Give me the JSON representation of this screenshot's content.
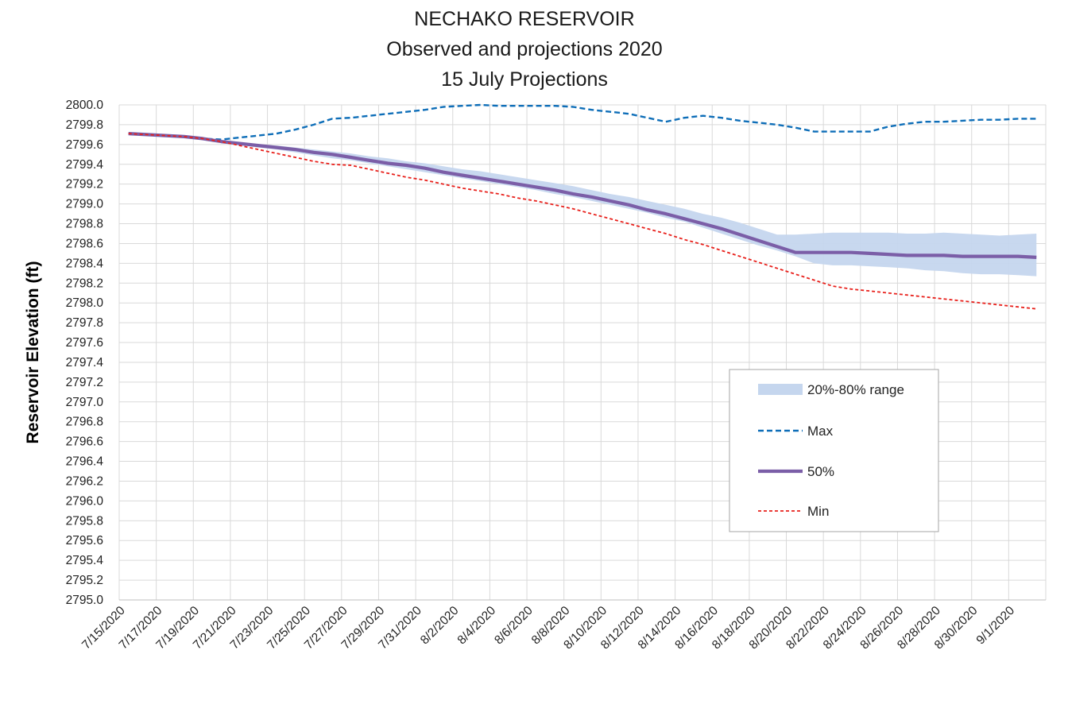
{
  "chart_data": {
    "type": "line",
    "title": "NECHAKO RESERVOIR",
    "subtitle": "Observed and projections 2020",
    "subtitle2": "15 July Projections",
    "xlabel": "",
    "ylabel": "Reservoir Elevation (ft)",
    "ylim": [
      2795.0,
      2800.0
    ],
    "y_ticks": [
      "2800.0",
      "2799.8",
      "2799.6",
      "2799.4",
      "2799.2",
      "2799.0",
      "2798.8",
      "2798.6",
      "2798.4",
      "2798.2",
      "2798.0",
      "2797.8",
      "2797.6",
      "2797.4",
      "2797.2",
      "2797.0",
      "2796.8",
      "2796.6",
      "2796.4",
      "2796.2",
      "2796.0",
      "2795.8",
      "2795.6",
      "2795.4",
      "2795.2",
      "2795.0"
    ],
    "x_ticks": [
      "7/15/2020",
      "7/17/2020",
      "7/19/2020",
      "7/21/2020",
      "7/23/2020",
      "7/25/2020",
      "7/27/2020",
      "7/29/2020",
      "7/31/2020",
      "8/2/2020",
      "8/4/2020",
      "8/6/2020",
      "8/8/2020",
      "8/10/2020",
      "8/12/2020",
      "8/14/2020",
      "8/16/2020",
      "8/18/2020",
      "8/20/2020",
      "8/22/2020",
      "8/24/2020",
      "8/26/2020",
      "8/28/2020",
      "8/30/2020",
      "9/1/2020"
    ],
    "grid": true,
    "legend_position": "right",
    "dates": [
      "7/15/2020",
      "7/16/2020",
      "7/17/2020",
      "7/18/2020",
      "7/19/2020",
      "7/20/2020",
      "7/21/2020",
      "7/22/2020",
      "7/23/2020",
      "7/24/2020",
      "7/25/2020",
      "7/26/2020",
      "7/27/2020",
      "7/28/2020",
      "7/29/2020",
      "7/30/2020",
      "7/31/2020",
      "8/1/2020",
      "8/2/2020",
      "8/3/2020",
      "8/4/2020",
      "8/5/2020",
      "8/6/2020",
      "8/7/2020",
      "8/8/2020",
      "8/9/2020",
      "8/10/2020",
      "8/11/2020",
      "8/12/2020",
      "8/13/2020",
      "8/14/2020",
      "8/15/2020",
      "8/16/2020",
      "8/17/2020",
      "8/18/2020",
      "8/19/2020",
      "8/20/2020",
      "8/21/2020",
      "8/22/2020",
      "8/23/2020",
      "8/24/2020",
      "8/25/2020",
      "8/26/2020",
      "8/27/2020",
      "8/28/2020",
      "8/29/2020",
      "8/30/2020",
      "8/31/2020",
      "9/1/2020",
      "9/2/2020"
    ],
    "series": [
      {
        "name": "20%-80% range",
        "kind": "band",
        "color": "#c5d6ee",
        "upper": [
          2799.71,
          2799.7,
          2799.69,
          2799.68,
          2799.66,
          2799.64,
          2799.62,
          2799.6,
          2799.59,
          2799.57,
          2799.55,
          2799.53,
          2799.51,
          2799.48,
          2799.46,
          2799.43,
          2799.41,
          2799.38,
          2799.35,
          2799.33,
          2799.3,
          2799.27,
          2799.24,
          2799.21,
          2799.18,
          2799.14,
          2799.1,
          2799.07,
          2799.03,
          2798.99,
          2798.95,
          2798.9,
          2798.86,
          2798.81,
          2798.75,
          2798.69,
          2798.69,
          2798.7,
          2798.71,
          2798.71,
          2798.71,
          2798.71,
          2798.7,
          2798.7,
          2798.71,
          2798.7,
          2798.69,
          2798.68,
          2798.69,
          2798.7
        ],
        "lower": [
          2799.71,
          2799.7,
          2799.69,
          2799.68,
          2799.66,
          2799.63,
          2799.6,
          2799.57,
          2799.55,
          2799.52,
          2799.49,
          2799.46,
          2799.44,
          2799.41,
          2799.38,
          2799.35,
          2799.32,
          2799.29,
          2799.26,
          2799.23,
          2799.2,
          2799.17,
          2799.14,
          2799.1,
          2799.07,
          2799.03,
          2798.99,
          2798.95,
          2798.91,
          2798.86,
          2798.82,
          2798.76,
          2798.7,
          2798.64,
          2798.58,
          2798.53,
          2798.47,
          2798.4,
          2798.38,
          2798.38,
          2798.37,
          2798.36,
          2798.35,
          2798.33,
          2798.32,
          2798.3,
          2798.29,
          2798.29,
          2798.28,
          2798.27
        ]
      },
      {
        "name": "Max",
        "kind": "line",
        "color": "#0e6eb8",
        "dash": "dashed",
        "values": [
          2799.71,
          2799.7,
          2799.69,
          2799.68,
          2799.66,
          2799.65,
          2799.67,
          2799.69,
          2799.71,
          2799.75,
          2799.8,
          2799.86,
          2799.87,
          2799.89,
          2799.91,
          2799.93,
          2799.95,
          2799.98,
          2799.99,
          2800.0,
          2799.99,
          2799.99,
          2799.99,
          2799.99,
          2799.98,
          2799.95,
          2799.93,
          2799.91,
          2799.87,
          2799.83,
          2799.87,
          2799.89,
          2799.87,
          2799.84,
          2799.82,
          2799.8,
          2799.77,
          2799.73,
          2799.73,
          2799.73,
          2799.73,
          2799.78,
          2799.81,
          2799.83,
          2799.83,
          2799.84,
          2799.85,
          2799.85,
          2799.86,
          2799.86
        ]
      },
      {
        "name": "50%",
        "kind": "line",
        "color": "#7b5ea7",
        "dash": "solid",
        "values": [
          2799.71,
          2799.7,
          2799.69,
          2799.68,
          2799.66,
          2799.63,
          2799.61,
          2799.59,
          2799.57,
          2799.55,
          2799.52,
          2799.5,
          2799.47,
          2799.44,
          2799.41,
          2799.39,
          2799.36,
          2799.32,
          2799.29,
          2799.26,
          2799.23,
          2799.2,
          2799.17,
          2799.14,
          2799.1,
          2799.07,
          2799.03,
          2798.99,
          2798.94,
          2798.9,
          2798.85,
          2798.8,
          2798.75,
          2798.69,
          2798.63,
          2798.57,
          2798.51,
          2798.51,
          2798.51,
          2798.51,
          2798.5,
          2798.49,
          2798.48,
          2798.48,
          2798.48,
          2798.47,
          2798.47,
          2798.47,
          2798.47,
          2798.46
        ]
      },
      {
        "name": "Min",
        "kind": "line",
        "color": "#e8201b",
        "dash": "dotted",
        "values": [
          2799.71,
          2799.7,
          2799.69,
          2799.68,
          2799.66,
          2799.63,
          2799.59,
          2799.55,
          2799.51,
          2799.47,
          2799.43,
          2799.4,
          2799.39,
          2799.35,
          2799.31,
          2799.27,
          2799.24,
          2799.2,
          2799.16,
          2799.13,
          2799.1,
          2799.06,
          2799.03,
          2798.99,
          2798.95,
          2798.9,
          2798.85,
          2798.8,
          2798.75,
          2798.7,
          2798.64,
          2798.59,
          2798.53,
          2798.47,
          2798.41,
          2798.35,
          2798.29,
          2798.23,
          2798.17,
          2798.14,
          2798.12,
          2798.1,
          2798.08,
          2798.06,
          2798.04,
          2798.02,
          2798.0,
          2797.98,
          2797.96,
          2797.94
        ]
      }
    ]
  }
}
